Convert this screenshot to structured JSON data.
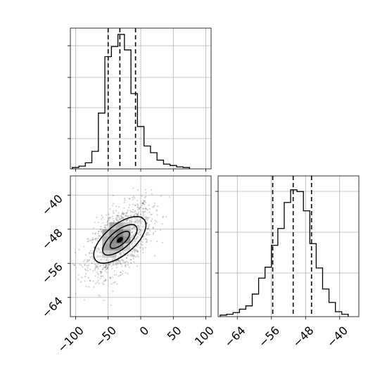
{
  "chart_data": [
    {
      "type": "histogram",
      "panel": "top-left",
      "xlim": [
        -108,
        108
      ],
      "x_ticks": [
        -100,
        -50,
        0,
        50,
        100
      ],
      "tick_labels_shown": false,
      "grid": true,
      "bin_edges": [
        -105,
        -95,
        -85,
        -75,
        -65,
        -55,
        -45,
        -35,
        -25,
        -15,
        -5,
        5,
        15,
        25,
        35,
        45,
        55,
        65,
        75
      ],
      "counts": [
        1,
        3,
        8,
        25,
        82,
        166,
        181,
        199,
        176,
        111,
        62,
        33,
        23,
        12,
        6,
        4,
        2,
        1
      ],
      "quantile_lines": [
        -50,
        -32,
        -8
      ]
    },
    {
      "type": "scatter-density-contour",
      "panel": "bottom-left",
      "xlim": [
        -108,
        108
      ],
      "ylim": [
        -68.5,
        -35.5
      ],
      "x_ticks": [
        -100,
        -50,
        0,
        50,
        100
      ],
      "x_tick_labels": [
        "−100",
        "−50",
        "0",
        "50",
        "100"
      ],
      "y_ticks": [
        -40,
        -48,
        -56,
        -64
      ],
      "y_tick_labels": [
        "−40",
        "−48",
        "−56",
        "−64"
      ],
      "grid": true,
      "center": {
        "x": -32,
        "y": -50.5
      }
    },
    {
      "type": "histogram",
      "panel": "bottom-right",
      "xlim": [
        -68.5,
        -35.5
      ],
      "x_ticks": [
        -64,
        -56,
        -48,
        -40
      ],
      "x_tick_labels": [
        "−64",
        "−56",
        "−48",
        "−40"
      ],
      "grid": true,
      "bin_edges": [
        -68,
        -66.5,
        -65,
        -63.5,
        -62,
        -60.5,
        -59,
        -57.5,
        -56,
        -54.5,
        -53,
        -51.5,
        -50,
        -48.5,
        -47,
        -45.5,
        -44,
        -42.5,
        -41,
        -39.5,
        -38
      ],
      "counts": [
        1,
        2,
        4,
        8,
        12,
        26,
        45,
        58,
        84,
        104,
        135,
        150,
        148,
        125,
        86,
        57,
        32,
        16,
        5,
        2
      ],
      "quantile_lines": [
        -55.7,
        -50.9,
        -46.6
      ]
    }
  ]
}
